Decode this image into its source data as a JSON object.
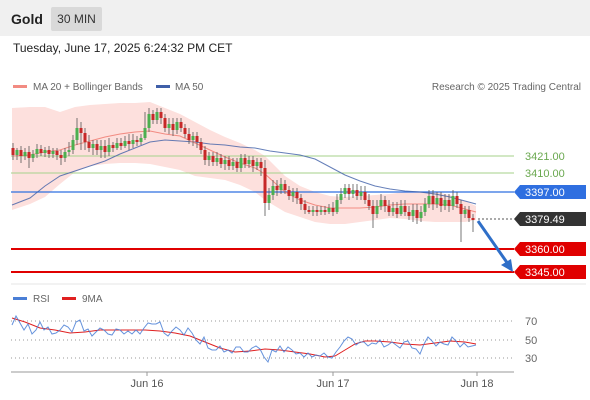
{
  "header": {
    "title": "Gold",
    "interval": "30 MIN",
    "datetime": "Tuesday, June 17, 2025 6:24:32 PM CET"
  },
  "legend": {
    "ma20": {
      "label": "MA 20 + Bollinger Bands",
      "color": "#f28b82"
    },
    "ma50": {
      "label": "MA 50",
      "color": "#3f5fa8"
    },
    "source": "Research © 2025 Trading Central"
  },
  "price_levels": [
    {
      "value": "3421.00",
      "style": "green-line"
    },
    {
      "value": "3410.00",
      "style": "green-line"
    },
    {
      "value": "3397.00",
      "style": "blue-box"
    },
    {
      "value": "3379.49",
      "style": "dark-box"
    },
    {
      "value": "3360.00",
      "style": "red-box"
    },
    {
      "value": "3345.00",
      "style": "red-box"
    }
  ],
  "rsi_legend": {
    "rsi": {
      "label": "RSI",
      "color": "#4a7fd6"
    },
    "ma9": {
      "label": "9MA",
      "color": "#e02020"
    }
  },
  "rsi_levels": [
    "70",
    "50",
    "30"
  ],
  "x_axis_labels": [
    "Jun 16",
    "Jun 17",
    "Jun 18"
  ],
  "colors": {
    "up_candle": "#4caf50",
    "down_candle": "#c62828",
    "bollinger_fill": "#fde0dd",
    "support_red": "#e00000",
    "level_blue": "#2f6fe0",
    "level_green": "#a5d28a",
    "arrow": "#2f6fc8"
  },
  "chart_data": {
    "type": "candlestick",
    "instrument": "Gold",
    "timeframe": "30 MIN",
    "price_levels": [
      3421.0,
      3410.0,
      3397.0,
      3379.49,
      3360.0,
      3345.0
    ],
    "last_price": 3379.49,
    "rsi_levels": [
      70,
      50,
      30
    ],
    "x_ticks": [
      "Jun 16",
      "Jun 17",
      "Jun 18"
    ]
  }
}
